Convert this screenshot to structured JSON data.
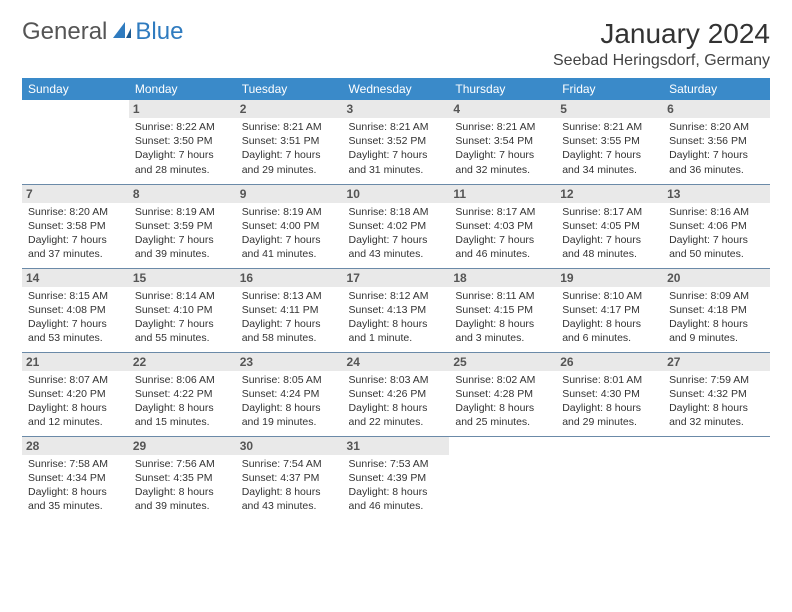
{
  "logo": {
    "text1": "General",
    "text2": "Blue"
  },
  "title": "January 2024",
  "location": "Seebad Heringsdorf, Germany",
  "colors": {
    "header_bg": "#3a8ac9",
    "header_text": "#ffffff",
    "daynum_bg": "#e9e9e9",
    "daynum_text": "#555555",
    "cell_border": "#6b8aa8",
    "logo_accent": "#2f7bbf",
    "page_bg": "#ffffff",
    "body_text": "#333333"
  },
  "typography": {
    "title_fontsize": 28,
    "location_fontsize": 16,
    "dow_fontsize": 12,
    "daynum_fontsize": 12,
    "cell_fontsize": 10.5,
    "font_family": "Arial"
  },
  "layout": {
    "columns": 7,
    "rows": 5,
    "start_day_index": 1
  },
  "dow": [
    "Sunday",
    "Monday",
    "Tuesday",
    "Wednesday",
    "Thursday",
    "Friday",
    "Saturday"
  ],
  "days": [
    {
      "n": 1,
      "sunrise": "8:22 AM",
      "sunset": "3:50 PM",
      "dl1": "Daylight: 7 hours",
      "dl2": "and 28 minutes."
    },
    {
      "n": 2,
      "sunrise": "8:21 AM",
      "sunset": "3:51 PM",
      "dl1": "Daylight: 7 hours",
      "dl2": "and 29 minutes."
    },
    {
      "n": 3,
      "sunrise": "8:21 AM",
      "sunset": "3:52 PM",
      "dl1": "Daylight: 7 hours",
      "dl2": "and 31 minutes."
    },
    {
      "n": 4,
      "sunrise": "8:21 AM",
      "sunset": "3:54 PM",
      "dl1": "Daylight: 7 hours",
      "dl2": "and 32 minutes."
    },
    {
      "n": 5,
      "sunrise": "8:21 AM",
      "sunset": "3:55 PM",
      "dl1": "Daylight: 7 hours",
      "dl2": "and 34 minutes."
    },
    {
      "n": 6,
      "sunrise": "8:20 AM",
      "sunset": "3:56 PM",
      "dl1": "Daylight: 7 hours",
      "dl2": "and 36 minutes."
    },
    {
      "n": 7,
      "sunrise": "8:20 AM",
      "sunset": "3:58 PM",
      "dl1": "Daylight: 7 hours",
      "dl2": "and 37 minutes."
    },
    {
      "n": 8,
      "sunrise": "8:19 AM",
      "sunset": "3:59 PM",
      "dl1": "Daylight: 7 hours",
      "dl2": "and 39 minutes."
    },
    {
      "n": 9,
      "sunrise": "8:19 AM",
      "sunset": "4:00 PM",
      "dl1": "Daylight: 7 hours",
      "dl2": "and 41 minutes."
    },
    {
      "n": 10,
      "sunrise": "8:18 AM",
      "sunset": "4:02 PM",
      "dl1": "Daylight: 7 hours",
      "dl2": "and 43 minutes."
    },
    {
      "n": 11,
      "sunrise": "8:17 AM",
      "sunset": "4:03 PM",
      "dl1": "Daylight: 7 hours",
      "dl2": "and 46 minutes."
    },
    {
      "n": 12,
      "sunrise": "8:17 AM",
      "sunset": "4:05 PM",
      "dl1": "Daylight: 7 hours",
      "dl2": "and 48 minutes."
    },
    {
      "n": 13,
      "sunrise": "8:16 AM",
      "sunset": "4:06 PM",
      "dl1": "Daylight: 7 hours",
      "dl2": "and 50 minutes."
    },
    {
      "n": 14,
      "sunrise": "8:15 AM",
      "sunset": "4:08 PM",
      "dl1": "Daylight: 7 hours",
      "dl2": "and 53 minutes."
    },
    {
      "n": 15,
      "sunrise": "8:14 AM",
      "sunset": "4:10 PM",
      "dl1": "Daylight: 7 hours",
      "dl2": "and 55 minutes."
    },
    {
      "n": 16,
      "sunrise": "8:13 AM",
      "sunset": "4:11 PM",
      "dl1": "Daylight: 7 hours",
      "dl2": "and 58 minutes."
    },
    {
      "n": 17,
      "sunrise": "8:12 AM",
      "sunset": "4:13 PM",
      "dl1": "Daylight: 8 hours",
      "dl2": "and 1 minute."
    },
    {
      "n": 18,
      "sunrise": "8:11 AM",
      "sunset": "4:15 PM",
      "dl1": "Daylight: 8 hours",
      "dl2": "and 3 minutes."
    },
    {
      "n": 19,
      "sunrise": "8:10 AM",
      "sunset": "4:17 PM",
      "dl1": "Daylight: 8 hours",
      "dl2": "and 6 minutes."
    },
    {
      "n": 20,
      "sunrise": "8:09 AM",
      "sunset": "4:18 PM",
      "dl1": "Daylight: 8 hours",
      "dl2": "and 9 minutes."
    },
    {
      "n": 21,
      "sunrise": "8:07 AM",
      "sunset": "4:20 PM",
      "dl1": "Daylight: 8 hours",
      "dl2": "and 12 minutes."
    },
    {
      "n": 22,
      "sunrise": "8:06 AM",
      "sunset": "4:22 PM",
      "dl1": "Daylight: 8 hours",
      "dl2": "and 15 minutes."
    },
    {
      "n": 23,
      "sunrise": "8:05 AM",
      "sunset": "4:24 PM",
      "dl1": "Daylight: 8 hours",
      "dl2": "and 19 minutes."
    },
    {
      "n": 24,
      "sunrise": "8:03 AM",
      "sunset": "4:26 PM",
      "dl1": "Daylight: 8 hours",
      "dl2": "and 22 minutes."
    },
    {
      "n": 25,
      "sunrise": "8:02 AM",
      "sunset": "4:28 PM",
      "dl1": "Daylight: 8 hours",
      "dl2": "and 25 minutes."
    },
    {
      "n": 26,
      "sunrise": "8:01 AM",
      "sunset": "4:30 PM",
      "dl1": "Daylight: 8 hours",
      "dl2": "and 29 minutes."
    },
    {
      "n": 27,
      "sunrise": "7:59 AM",
      "sunset": "4:32 PM",
      "dl1": "Daylight: 8 hours",
      "dl2": "and 32 minutes."
    },
    {
      "n": 28,
      "sunrise": "7:58 AM",
      "sunset": "4:34 PM",
      "dl1": "Daylight: 8 hours",
      "dl2": "and 35 minutes."
    },
    {
      "n": 29,
      "sunrise": "7:56 AM",
      "sunset": "4:35 PM",
      "dl1": "Daylight: 8 hours",
      "dl2": "and 39 minutes."
    },
    {
      "n": 30,
      "sunrise": "7:54 AM",
      "sunset": "4:37 PM",
      "dl1": "Daylight: 8 hours",
      "dl2": "and 43 minutes."
    },
    {
      "n": 31,
      "sunrise": "7:53 AM",
      "sunset": "4:39 PM",
      "dl1": "Daylight: 8 hours",
      "dl2": "and 46 minutes."
    }
  ],
  "labels": {
    "sunrise_prefix": "Sunrise: ",
    "sunset_prefix": "Sunset: "
  }
}
